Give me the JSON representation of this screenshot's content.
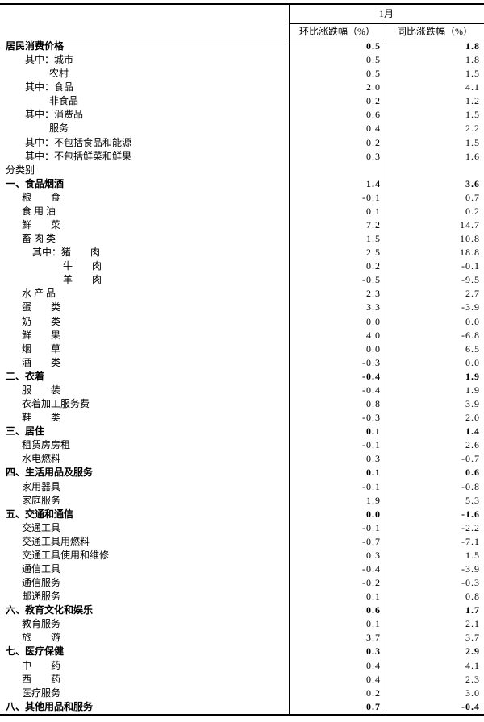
{
  "header": {
    "month": "1月",
    "col_mom": "环比涨跌幅（%）",
    "col_yoy": "同比涨跌幅（%）"
  },
  "rows": [
    {
      "label": "居民消费价格",
      "indent": 0,
      "bold": true,
      "mom": "0.5",
      "yoy": "1.8"
    },
    {
      "label": "其中：城市",
      "indent": 1,
      "bold": false,
      "mom": "0.5",
      "yoy": "1.8"
    },
    {
      "label": "农村",
      "indent": 2,
      "bold": false,
      "mom": "0.5",
      "yoy": "1.5"
    },
    {
      "label": "其中：食品",
      "indent": 1,
      "bold": false,
      "mom": "2.0",
      "yoy": "4.1"
    },
    {
      "label": "非食品",
      "indent": 2,
      "bold": false,
      "mom": "0.2",
      "yoy": "1.2"
    },
    {
      "label": "其中：消费品",
      "indent": 1,
      "bold": false,
      "mom": "0.6",
      "yoy": "1.5"
    },
    {
      "label": "服务",
      "indent": 2,
      "bold": false,
      "mom": "0.4",
      "yoy": "2.2"
    },
    {
      "label": "其中：不包括食品和能源",
      "indent": 1,
      "bold": false,
      "mom": "0.2",
      "yoy": "1.5"
    },
    {
      "label": "其中：不包括鲜菜和鲜果",
      "indent": 1,
      "bold": false,
      "mom": "0.3",
      "yoy": "1.6"
    },
    {
      "label": "分类别",
      "indent": 0,
      "bold": false,
      "mom": "",
      "yoy": ""
    },
    {
      "label": "一、食品烟酒",
      "indent": 0,
      "bold": true,
      "mom": "1.4",
      "yoy": "3.6"
    },
    {
      "label": "粮　　食",
      "indent": 3,
      "bold": false,
      "mom": "-0.1",
      "yoy": "0.7"
    },
    {
      "label": "食 用 油",
      "indent": 3,
      "bold": false,
      "mom": "0.1",
      "yoy": "0.2"
    },
    {
      "label": "鲜　　菜",
      "indent": 3,
      "bold": false,
      "mom": "7.2",
      "yoy": "14.7"
    },
    {
      "label": "畜 肉 类",
      "indent": 3,
      "bold": false,
      "mom": "1.5",
      "yoy": "10.8"
    },
    {
      "label": "其中：猪　　肉",
      "indent": 4,
      "bold": false,
      "mom": "2.5",
      "yoy": "18.8"
    },
    {
      "label": "牛　　肉",
      "indent": 5,
      "bold": false,
      "mom": "0.2",
      "yoy": "-0.1"
    },
    {
      "label": "羊　　肉",
      "indent": 5,
      "bold": false,
      "mom": "-0.5",
      "yoy": "-9.5"
    },
    {
      "label": "水 产 品",
      "indent": 3,
      "bold": false,
      "mom": "2.3",
      "yoy": "2.7"
    },
    {
      "label": "蛋　　类",
      "indent": 3,
      "bold": false,
      "mom": "3.3",
      "yoy": "-3.9"
    },
    {
      "label": "奶　　类",
      "indent": 3,
      "bold": false,
      "mom": "0.0",
      "yoy": "0.0"
    },
    {
      "label": "鲜　　果",
      "indent": 3,
      "bold": false,
      "mom": "4.0",
      "yoy": "-6.8"
    },
    {
      "label": "烟　　草",
      "indent": 3,
      "bold": false,
      "mom": "0.0",
      "yoy": "6.5"
    },
    {
      "label": "酒　　类",
      "indent": 3,
      "bold": false,
      "mom": "-0.3",
      "yoy": "0.0"
    },
    {
      "label": "二、衣着",
      "indent": 0,
      "bold": true,
      "mom": "-0.4",
      "yoy": "1.9"
    },
    {
      "label": "服　　装",
      "indent": 3,
      "bold": false,
      "mom": "-0.4",
      "yoy": "1.9"
    },
    {
      "label": "衣着加工服务费",
      "indent": 3,
      "bold": false,
      "mom": "0.8",
      "yoy": "3.9"
    },
    {
      "label": "鞋　　类",
      "indent": 3,
      "bold": false,
      "mom": "-0.3",
      "yoy": "2.0"
    },
    {
      "label": "三、居住",
      "indent": 0,
      "bold": true,
      "mom": "0.1",
      "yoy": "1.4"
    },
    {
      "label": "租赁房房租",
      "indent": 3,
      "bold": false,
      "mom": "-0.1",
      "yoy": "2.6"
    },
    {
      "label": "水电燃料",
      "indent": 3,
      "bold": false,
      "mom": "0.3",
      "yoy": "-0.7"
    },
    {
      "label": "四、生活用品及服务",
      "indent": 0,
      "bold": true,
      "mom": "0.1",
      "yoy": "0.6"
    },
    {
      "label": "家用器具",
      "indent": 3,
      "bold": false,
      "mom": "-0.1",
      "yoy": "-0.8"
    },
    {
      "label": "家庭服务",
      "indent": 3,
      "bold": false,
      "mom": "1.9",
      "yoy": "5.3"
    },
    {
      "label": "五、交通和通信",
      "indent": 0,
      "bold": true,
      "mom": "0.0",
      "yoy": "-1.6"
    },
    {
      "label": "交通工具",
      "indent": 3,
      "bold": false,
      "mom": "-0.1",
      "yoy": "-2.2"
    },
    {
      "label": "交通工具用燃料",
      "indent": 3,
      "bold": false,
      "mom": "-0.7",
      "yoy": "-7.1"
    },
    {
      "label": "交通工具使用和维修",
      "indent": 3,
      "bold": false,
      "mom": "0.3",
      "yoy": "1.5"
    },
    {
      "label": "通信工具",
      "indent": 3,
      "bold": false,
      "mom": "-0.4",
      "yoy": "-3.9"
    },
    {
      "label": "通信服务",
      "indent": 3,
      "bold": false,
      "mom": "-0.2",
      "yoy": "-0.3"
    },
    {
      "label": "邮递服务",
      "indent": 3,
      "bold": false,
      "mom": "0.1",
      "yoy": "0.8"
    },
    {
      "label": "六、教育文化和娱乐",
      "indent": 0,
      "bold": true,
      "mom": "0.6",
      "yoy": "1.7"
    },
    {
      "label": "教育服务",
      "indent": 3,
      "bold": false,
      "mom": "0.1",
      "yoy": "2.1"
    },
    {
      "label": "旅　　游",
      "indent": 3,
      "bold": false,
      "mom": "3.7",
      "yoy": "3.7"
    },
    {
      "label": "七、医疗保健",
      "indent": 0,
      "bold": true,
      "mom": "0.3",
      "yoy": "2.9"
    },
    {
      "label": "中　　药",
      "indent": 3,
      "bold": false,
      "mom": "0.4",
      "yoy": "4.1"
    },
    {
      "label": "西　　药",
      "indent": 3,
      "bold": false,
      "mom": "0.4",
      "yoy": "2.3"
    },
    {
      "label": "医疗服务",
      "indent": 3,
      "bold": false,
      "mom": "0.2",
      "yoy": "3.0"
    },
    {
      "label": "八、其他用品和服务",
      "indent": 0,
      "bold": true,
      "mom": "0.7",
      "yoy": "-0.4"
    }
  ]
}
